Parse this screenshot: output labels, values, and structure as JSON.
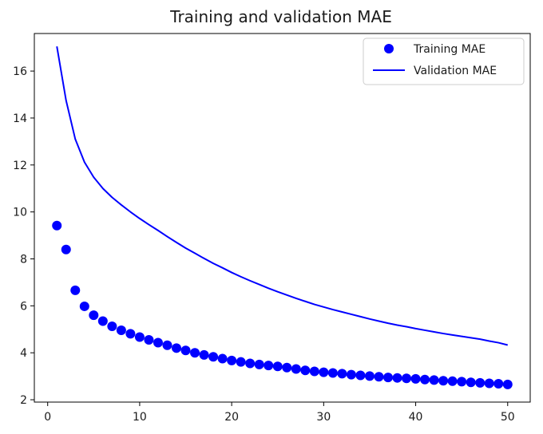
{
  "chart_data": {
    "type": "line",
    "title": "Training and validation MAE",
    "xlabel": "",
    "ylabel": "",
    "xlim": [
      -1.45,
      52.45
    ],
    "ylim": [
      1.9,
      17.6
    ],
    "x_ticks": [
      0,
      10,
      20,
      30,
      40,
      50
    ],
    "y_ticks": [
      2,
      4,
      6,
      8,
      10,
      12,
      14,
      16
    ],
    "grid": false,
    "legend_position": "top-right",
    "x": [
      1,
      2,
      3,
      4,
      5,
      6,
      7,
      8,
      9,
      10,
      11,
      12,
      13,
      14,
      15,
      16,
      17,
      18,
      19,
      20,
      21,
      22,
      23,
      24,
      25,
      26,
      27,
      28,
      29,
      30,
      31,
      32,
      33,
      34,
      35,
      36,
      37,
      38,
      39,
      40,
      41,
      42,
      43,
      44,
      45,
      46,
      47,
      48,
      49,
      50
    ],
    "series": [
      {
        "name": "Training MAE",
        "style": "markers",
        "color": "#0000ff",
        "values": [
          9.42,
          8.4,
          6.66,
          5.98,
          5.6,
          5.35,
          5.13,
          4.96,
          4.81,
          4.67,
          4.55,
          4.43,
          4.32,
          4.2,
          4.1,
          4.0,
          3.91,
          3.83,
          3.75,
          3.67,
          3.61,
          3.55,
          3.5,
          3.46,
          3.42,
          3.37,
          3.31,
          3.25,
          3.21,
          3.17,
          3.14,
          3.11,
          3.07,
          3.04,
          3.01,
          2.98,
          2.95,
          2.93,
          2.91,
          2.89,
          2.86,
          2.84,
          2.81,
          2.79,
          2.77,
          2.74,
          2.72,
          2.7,
          2.68,
          2.65
        ]
      },
      {
        "name": "Validation MAE",
        "style": "line",
        "color": "#0000ff",
        "values": [
          17.05,
          14.75,
          13.1,
          12.12,
          11.48,
          11.0,
          10.62,
          10.3,
          10.0,
          9.72,
          9.46,
          9.21,
          8.95,
          8.7,
          8.46,
          8.24,
          8.02,
          7.81,
          7.62,
          7.42,
          7.24,
          7.07,
          6.91,
          6.75,
          6.6,
          6.46,
          6.32,
          6.19,
          6.06,
          5.95,
          5.84,
          5.74,
          5.64,
          5.54,
          5.44,
          5.35,
          5.26,
          5.18,
          5.11,
          5.03,
          4.96,
          4.89,
          4.82,
          4.76,
          4.7,
          4.64,
          4.58,
          4.5,
          4.43,
          4.33
        ]
      }
    ]
  }
}
